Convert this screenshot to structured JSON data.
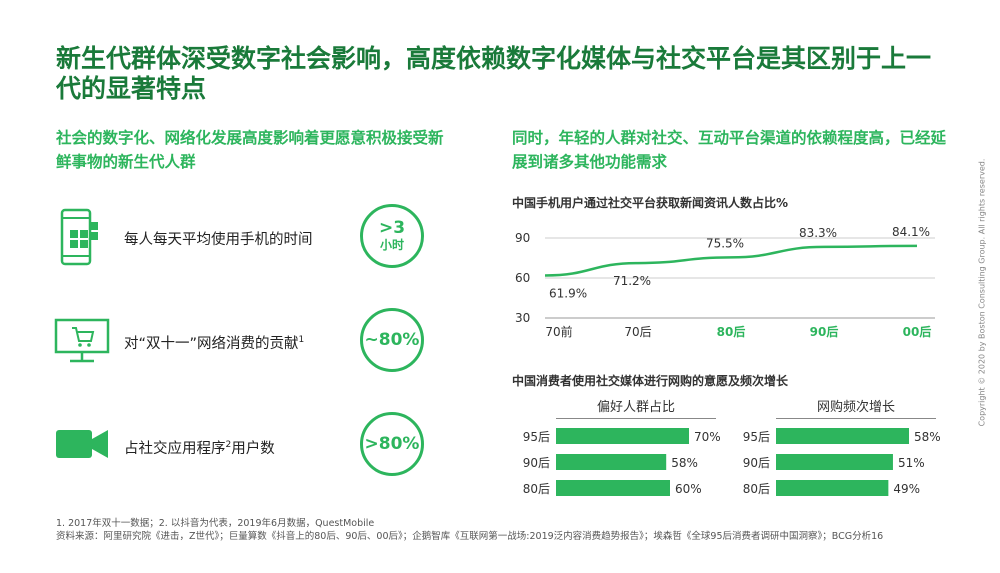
{
  "title": "新生代群体深受数字社会影响，高度依赖数字化媒体与社交平台是其区别于上一代的显著特点",
  "left": {
    "subhead": "社会的数字化、网络化发展高度影响着更愿意积极接受新鲜事物的新生代人群",
    "stats": [
      {
        "icon": "mobile-phone-icon",
        "text": "每人每天平均使用手机的时间",
        "sup": "",
        "value": ">3",
        "unit": "小时"
      },
      {
        "icon": "shopping-cart-monitor-icon",
        "text": "对“双十一”网络消费的贡献",
        "sup": "1",
        "value": "~80%",
        "unit": ""
      },
      {
        "icon": "video-camera-icon",
        "text": "占社交应用程序",
        "sup": "2",
        "text_after": "用户数",
        "value": ">80%",
        "unit": ""
      }
    ]
  },
  "right": {
    "subhead": "同时，年轻的人群对社交、互动平台渠道的依赖程度高，已经延展到诸多其他功能需求"
  },
  "footnotes": {
    "line1": "1. 2017年双十一数据；2. 以抖音为代表，2019年6月数据，QuestMobile",
    "line2": "资料来源：阿里研究院《进击，Z世代》；巨量算数《抖音上的80后、90后、00后》；企鹅智库《互联网第一战场:2019泛内容消费趋势报告》；埃森哲《全球95后消费者调研中国洞察》；BCG分析16"
  },
  "copyright": "Copyright © 2020 by Boston Consulting Group. All rights reserved.",
  "colors": {
    "accent": "#2db55d",
    "title": "#1a7a3a"
  },
  "chart_data": [
    {
      "type": "line",
      "title": "中国手机用户通过社交平台获取新闻资讯人数占比%",
      "categories": [
        "70前",
        "70后",
        "80后",
        "90后",
        "00后"
      ],
      "highlight_categories": [
        "80后",
        "90后",
        "00后"
      ],
      "values": [
        61.9,
        71.2,
        75.5,
        83.3,
        84.1
      ],
      "value_labels": [
        "61.9%",
        "71.2%",
        "75.5%",
        "83.3%",
        "84.1%"
      ],
      "yticks": [
        "90",
        "60",
        "30"
      ],
      "ylim": [
        30,
        90
      ],
      "grid": true
    },
    {
      "type": "bar",
      "title": "中国消费者使用社交媒体进行网购的意愿及频次增长",
      "categories": [
        "95后",
        "90后",
        "80后"
      ],
      "series": [
        {
          "name": "偏好人群占比",
          "values": [
            70,
            58,
            60
          ],
          "labels": [
            "70%",
            "58%",
            "60%"
          ]
        },
        {
          "name": "网购频次增长",
          "values": [
            58,
            51,
            49
          ],
          "labels": [
            "58%",
            "51%",
            "49%"
          ]
        }
      ]
    }
  ]
}
